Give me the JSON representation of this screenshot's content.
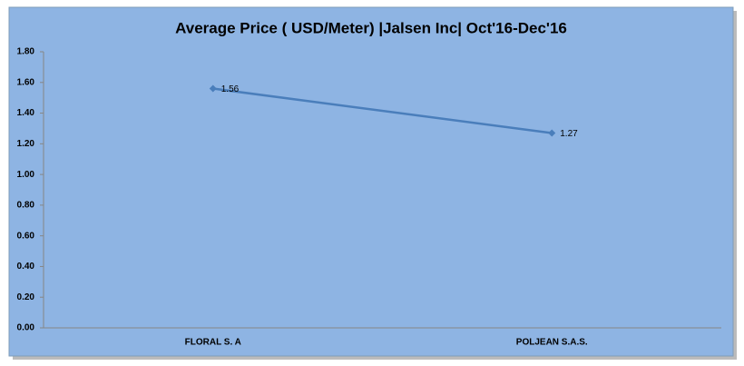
{
  "chart_data": {
    "type": "line",
    "title": "Average Price ( USD/Meter) |Jalsen Inc|  Oct'16-Dec'16",
    "categories": [
      "FLORAL S. A",
      "POLJEAN S.A.S."
    ],
    "series": [
      {
        "name": "Average Price",
        "color": "#4a7ebb",
        "values": [
          1.56,
          1.27
        ]
      }
    ],
    "ylim": [
      0,
      1.8
    ],
    "yticks": [
      {
        "value": 0,
        "label": "0.00"
      },
      {
        "value": 0.2,
        "label": "0.20"
      },
      {
        "value": 0.4,
        "label": "0.40"
      },
      {
        "value": 0.6,
        "label": "0.60"
      },
      {
        "value": 0.8,
        "label": "0.80"
      },
      {
        "value": 1,
        "label": "1.00"
      },
      {
        "value": 1.2,
        "label": "1.20"
      },
      {
        "value": 1.4,
        "label": "1.40"
      },
      {
        "value": 1.6,
        "label": "1.60"
      },
      {
        "value": 1.8,
        "label": "1.80"
      }
    ],
    "grid": false,
    "background": "#8eb4e3"
  }
}
